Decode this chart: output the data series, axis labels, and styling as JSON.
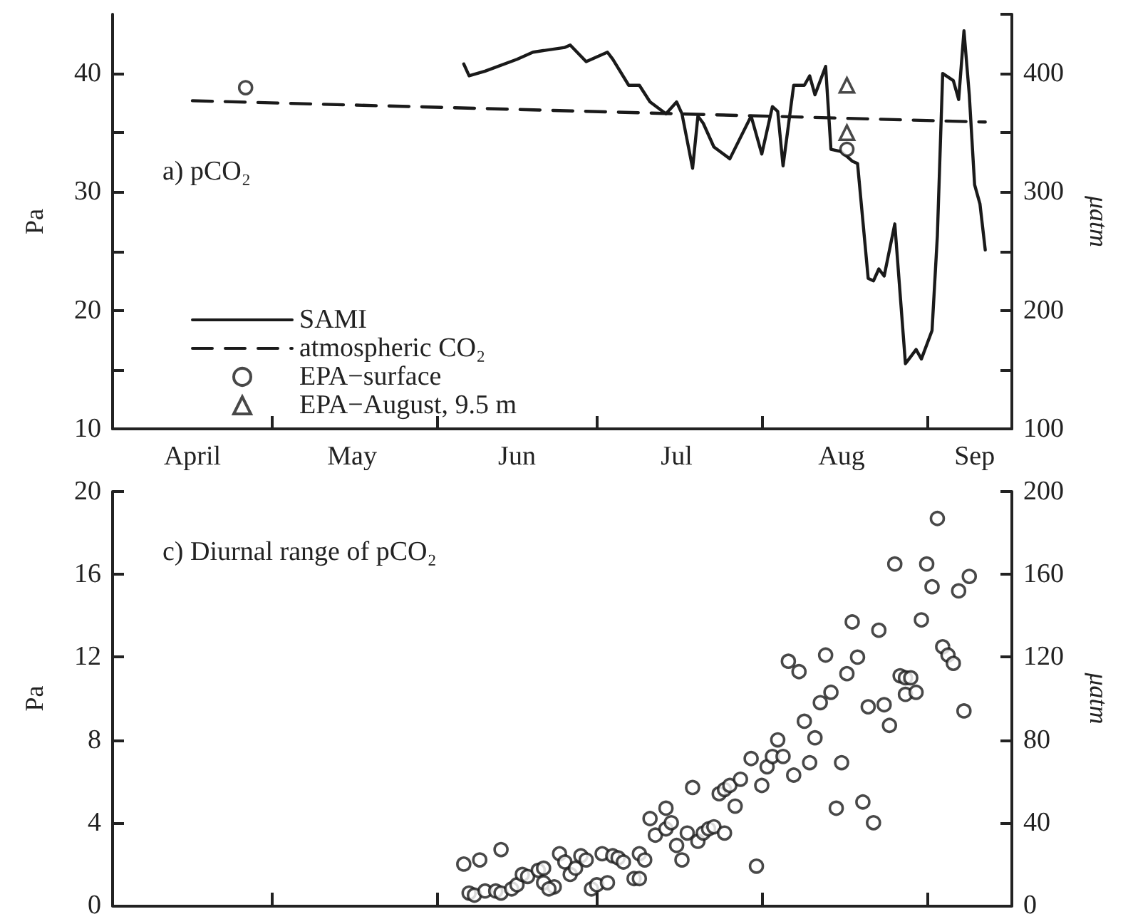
{
  "chart_data": [
    {
      "type": "line",
      "title": "a) pCO₂",
      "ylabel": "Pa",
      "y2label": "μatm",
      "legend": "bottom left",
      "grid": false,
      "xlim": [
        "--04-01",
        "--09-17"
      ],
      "xticks": [
        {
          "value": "--04-16",
          "label": "April"
        },
        {
          "value": "--05-01",
          "label": null
        },
        {
          "value": "--05-16",
          "label": "May"
        },
        {
          "value": "--06-01",
          "label": null
        },
        {
          "value": "--06-16",
          "label": "Jun"
        },
        {
          "value": "--07-01",
          "label": null
        },
        {
          "value": "--07-16",
          "label": "Jul"
        },
        {
          "value": "--08-01",
          "label": null
        },
        {
          "value": "--08-16",
          "label": "Aug"
        },
        {
          "value": "--09-01",
          "label": null
        },
        {
          "value": "--09-10",
          "label": "Sep"
        }
      ],
      "ylim": [
        10,
        45
      ],
      "yticks": [
        10,
        {
          "value": 15,
          "label": null
        },
        20,
        {
          "value": 25,
          "label": null
        },
        30,
        {
          "value": 35,
          "label": null
        },
        40
      ],
      "y2lim": [
        100,
        450
      ],
      "y2ticks": [
        100,
        {
          "value": 150,
          "label": null
        },
        200,
        {
          "value": 250,
          "label": null
        },
        300,
        {
          "value": 350,
          "label": null
        },
        400,
        {
          "value": 450,
          "label": null
        }
      ],
      "series": [
        {
          "name": "SAMI",
          "color": "#1a1a1a",
          "marker": "none",
          "line_style": "solid",
          "x": [
            "--06-06",
            "--06-07",
            "--06-10",
            "--06-16",
            "--06-19",
            "--06-25",
            "--06-26",
            "--06-29",
            "--07-03",
            "--07-04",
            "--07-07",
            "--07-09",
            "--07-11",
            "--07-14",
            "--07-16",
            "--07-17",
            "--07-19",
            "--07-20",
            "--07-21",
            "--07-23",
            "--07-26",
            "--07-30",
            "--08-01",
            "--08-03",
            "--08-04",
            "--08-05",
            "--08-07",
            "--08-09",
            "--08-10",
            "--08-11",
            "--08-13",
            "--08-14",
            "--08-16",
            "--08-18",
            "--08-19",
            "--08-21",
            "--08-22",
            "--08-23",
            "--08-24",
            "--08-26",
            "--08-28",
            "--08-30",
            "--08-31",
            "--09-02",
            "--09-03",
            "--09-04",
            "--09-06",
            "--09-07",
            "--09-08",
            "--09-09",
            "--09-10",
            "--09-11",
            "--09-12"
          ],
          "values": [
            40.8,
            39.8,
            40.2,
            41.2,
            41.8,
            42.2,
            42.4,
            41.0,
            41.8,
            41.2,
            39.0,
            39.0,
            37.6,
            36.6,
            37.6,
            36.6,
            32.0,
            36.4,
            35.8,
            33.8,
            32.8,
            36.4,
            33.2,
            37.2,
            36.8,
            32.2,
            39.0,
            39.0,
            39.8,
            38.2,
            40.6,
            33.6,
            33.4,
            32.6,
            32.4,
            22.7,
            22.5,
            23.5,
            22.9,
            27.3,
            15.5,
            16.7,
            15.9,
            18.3,
            26.3,
            40.0,
            39.4,
            37.8,
            43.6,
            38.2,
            30.6,
            29.0,
            25.1
          ]
        },
        {
          "name": "atmospheric CO₂",
          "color": "#1a1a1a",
          "marker": "none",
          "line_style": "dashed",
          "x": [
            "--04-16",
            "--09-12"
          ],
          "values": [
            37.7,
            35.9
          ]
        },
        {
          "name": "EPA−surface",
          "type": "scatter",
          "color": "#1a1a1a",
          "marker": "circle",
          "x": [
            "--04-26",
            "--08-17"
          ],
          "values": [
            38.8,
            33.6
          ]
        },
        {
          "name": "EPA−August, 9.5 m",
          "type": "scatter",
          "color": "#1a1a1a",
          "marker": "triangle",
          "x": [
            "--08-17",
            "--08-17"
          ],
          "values": [
            39.0,
            35.0
          ]
        }
      ]
    },
    {
      "type": "scatter",
      "title": "c) Diurnal range of pCO₂",
      "ylabel": "Pa",
      "y2label": "μatm",
      "grid": false,
      "tick_labels": "y",
      "xlim": [
        "--04-01",
        "--09-17"
      ],
      "xticks": [
        {
          "value": "--05-01",
          "label": null
        },
        {
          "value": "--06-01",
          "label": null
        },
        {
          "value": "--07-01",
          "label": null
        },
        {
          "value": "--08-01",
          "label": null
        },
        {
          "value": "--09-01",
          "label": null
        }
      ],
      "ylim": [
        0,
        20
      ],
      "yticks": [
        0,
        4,
        8,
        12,
        16,
        20
      ],
      "y2lim": [
        0,
        200
      ],
      "y2ticks": [
        0,
        40,
        80,
        120,
        160,
        200
      ],
      "series": [
        {
          "color": "#1a1a1a",
          "marker": "circle",
          "x": [
            "--06-06",
            "--06-09",
            "--06-13",
            "--06-07",
            "--06-08",
            "--06-10",
            "--06-12",
            "--06-13",
            "--06-15",
            "--06-16",
            "--06-17",
            "--06-18",
            "--06-20",
            "--06-21",
            "--06-21",
            "--06-23",
            "--06-22",
            "--06-24",
            "--06-25",
            "--06-26",
            "--06-27",
            "--06-28",
            "--06-29",
            "--06-30",
            "--07-01",
            "--07-02",
            "--07-03",
            "--07-04",
            "--07-05",
            "--07-06",
            "--07-08",
            "--07-09",
            "--07-09",
            "--07-10",
            "--07-11",
            "--07-12",
            "--07-14",
            "--07-14",
            "--07-15",
            "--07-16",
            "--07-17",
            "--07-18",
            "--07-19",
            "--07-20",
            "--07-21",
            "--07-22",
            "--07-23",
            "--07-24",
            "--07-25",
            "--07-25",
            "--07-26",
            "--07-27",
            "--07-28",
            "--07-30",
            "--07-31",
            "--08-01",
            "--08-02",
            "--08-03",
            "--08-04",
            "--08-05",
            "--08-07",
            "--08-06",
            "--08-08",
            "--08-09",
            "--08-10",
            "--08-11",
            "--08-12",
            "--08-13",
            "--08-14",
            "--08-15",
            "--08-16",
            "--08-17",
            "--08-18",
            "--08-19",
            "--08-20",
            "--08-21",
            "--08-22",
            "--08-23",
            "--08-24",
            "--08-25",
            "--08-26",
            "--08-27",
            "--08-28",
            "--08-28",
            "--08-29",
            "--08-30",
            "--08-31",
            "--09-01",
            "--09-02",
            "--09-03",
            "--09-04",
            "--09-05",
            "--09-06",
            "--09-07",
            "--09-08",
            "--09-09"
          ],
          "values": [
            2.0,
            2.2,
            2.7,
            0.6,
            0.5,
            0.7,
            0.7,
            0.6,
            0.8,
            1.0,
            1.5,
            1.4,
            1.7,
            1.8,
            1.1,
            0.9,
            0.8,
            2.5,
            2.1,
            1.5,
            1.8,
            2.4,
            2.2,
            0.8,
            1.0,
            2.5,
            1.1,
            2.4,
            2.3,
            2.1,
            1.3,
            1.3,
            2.5,
            2.2,
            4.2,
            3.4,
            3.7,
            4.7,
            4.0,
            2.9,
            2.2,
            3.5,
            5.7,
            3.1,
            3.5,
            3.7,
            3.8,
            5.4,
            5.6,
            3.5,
            5.8,
            4.8,
            6.1,
            7.1,
            1.9,
            5.8,
            6.7,
            7.2,
            8.0,
            7.2,
            6.3,
            11.8,
            11.3,
            8.9,
            6.9,
            8.1,
            9.8,
            12.1,
            10.3,
            4.7,
            6.9,
            11.2,
            13.7,
            12.0,
            5.0,
            9.6,
            4.0,
            13.3,
            9.7,
            8.7,
            16.5,
            11.1,
            11.0,
            10.2,
            11.0,
            10.3,
            13.8,
            16.5,
            15.4,
            18.7,
            12.5,
            12.1,
            11.7,
            15.2,
            9.4,
            15.9
          ]
        }
      ]
    }
  ]
}
